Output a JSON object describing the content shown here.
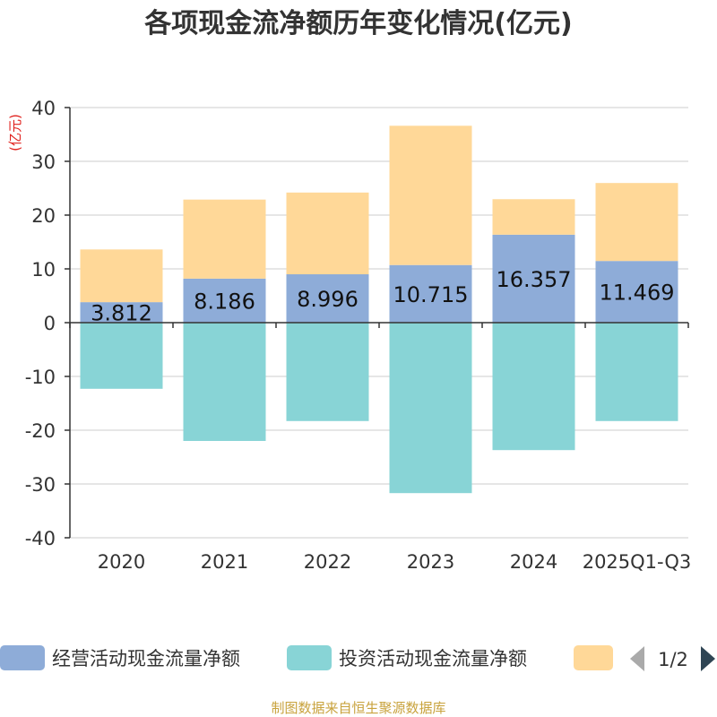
{
  "chart_data": {
    "type": "bar",
    "stacked": true,
    "title": "各项现金流净额历年变化情况(亿元)",
    "ylabel": "(亿元)",
    "ylim": [
      -40,
      40
    ],
    "yticks": [
      40,
      30,
      20,
      10,
      0,
      -10,
      -20,
      -30,
      -40
    ],
    "categories": [
      "2020",
      "2021",
      "2022",
      "2023",
      "2024",
      "2025Q1-Q3"
    ],
    "series": [
      {
        "name": "经营活动现金流量净额",
        "color": "#8eacd8",
        "values": [
          3.812,
          8.186,
          8.996,
          10.715,
          16.357,
          11.469
        ],
        "labels": [
          "3.812",
          "8.186",
          "8.996",
          "10.715",
          "16.357",
          "11.469"
        ]
      },
      {
        "name": "投资活动现金流量净额",
        "color": "#88d4d6",
        "values": [
          -12.3,
          -22.0,
          -18.3,
          -31.7,
          -23.7,
          -18.3
        ]
      },
      {
        "name": "",
        "color": "#ffd898",
        "values": [
          9.8,
          14.7,
          15.2,
          25.9,
          6.6,
          14.5
        ]
      }
    ],
    "legend": {
      "placement": "bottom",
      "page": "1/2"
    },
    "source": "制图数据来自恒生聚源数据库"
  }
}
